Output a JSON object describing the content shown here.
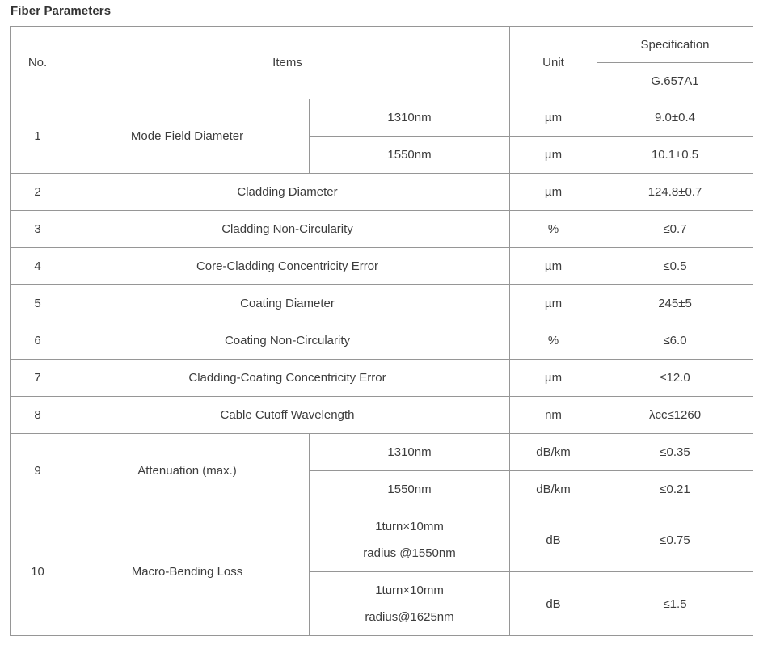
{
  "page_title": "Fiber Parameters",
  "colors": {
    "table_border": "#969696",
    "text": "#3d3d3d"
  },
  "table": {
    "headers": {
      "no": "No.",
      "items": "Items",
      "unit": "Unit",
      "specification": "Specification",
      "spec_grade": "G.657A1"
    },
    "rows": [
      {
        "no": "1",
        "item": "Mode Field Diameter",
        "subs": [
          {
            "cond": "1310nm",
            "unit": "µm",
            "spec": "9.0±0.4"
          },
          {
            "cond": "1550nm",
            "unit": "µm",
            "spec": "10.1±0.5"
          }
        ]
      },
      {
        "no": "2",
        "item": "Cladding Diameter",
        "unit": "µm",
        "spec": "124.8±0.7"
      },
      {
        "no": "3",
        "item": "Cladding Non-Circularity",
        "unit": "%",
        "spec": "≤0.7"
      },
      {
        "no": "4",
        "item": "Core-Cladding Concentricity Error",
        "unit": "µm",
        "spec": "≤0.5"
      },
      {
        "no": "5",
        "item": "Coating Diameter",
        "unit": "µm",
        "spec": "245±5"
      },
      {
        "no": "6",
        "item": "Coating Non-Circularity",
        "unit": "%",
        "spec": "≤6.0"
      },
      {
        "no": "7",
        "item": "Cladding-Coating Concentricity Error",
        "unit": "µm",
        "spec": "≤12.0"
      },
      {
        "no": "8",
        "item": "Cable Cutoff Wavelength",
        "unit": "nm",
        "spec": "λcc≤1260"
      },
      {
        "no": "9",
        "item": "Attenuation (max.)",
        "subs": [
          {
            "cond": "1310nm",
            "unit": "dB/km",
            "spec": "≤0.35"
          },
          {
            "cond": "1550nm",
            "unit": "dB/km",
            "spec": "≤0.21"
          }
        ]
      },
      {
        "no": "10",
        "item": "Macro-Bending Loss",
        "subs": [
          {
            "cond_line1": "1turn×10mm",
            "cond_line2": "radius @1550nm",
            "unit": "dB",
            "spec": "≤0.75"
          },
          {
            "cond_line1": "1turn×10mm",
            "cond_line2": "radius@1625nm",
            "unit": "dB",
            "spec": "≤1.5"
          }
        ]
      }
    ]
  }
}
